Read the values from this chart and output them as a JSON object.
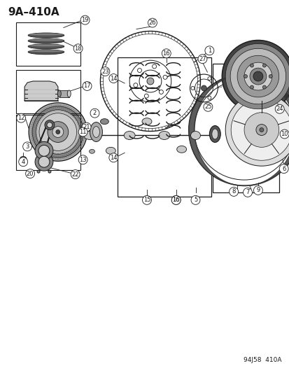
{
  "title": "9A–410A",
  "footer": "94J58  410A",
  "bg_color": "#ffffff",
  "line_color": "#1a1a1a",
  "title_fontsize": 11,
  "footer_fontsize": 6.5
}
